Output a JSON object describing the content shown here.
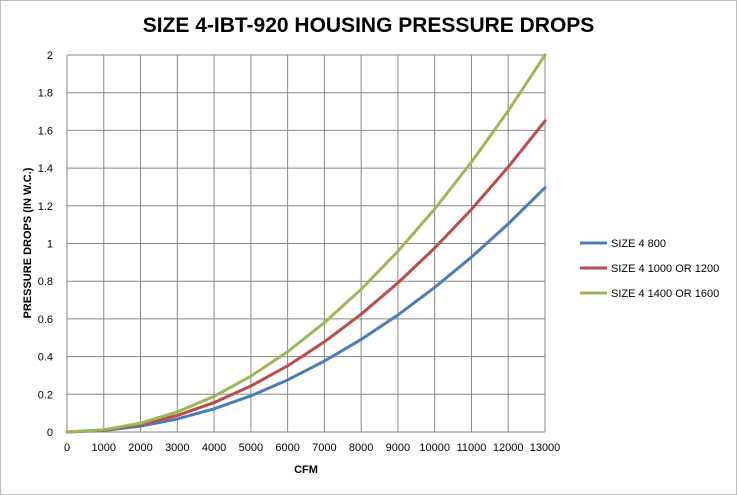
{
  "chart_data": {
    "type": "line",
    "title": "SIZE 4-IBT-920  HOUSING  PRESSURE DROPS",
    "xlabel": "CFM",
    "ylabel": "PRESSURE  DROPS  (IN W.C.)",
    "xlim": [
      0,
      13000
    ],
    "ylim": [
      0,
      2
    ],
    "xticks": [
      0,
      1000,
      2000,
      3000,
      4000,
      5000,
      6000,
      7000,
      8000,
      9000,
      10000,
      11000,
      12000,
      13000
    ],
    "yticks": [
      0,
      0.2,
      0.4,
      0.6,
      0.8,
      1,
      1.2,
      1.4,
      1.6,
      1.8,
      2
    ],
    "grid": true,
    "legend_position": "right",
    "x": [
      0,
      1000,
      2000,
      3000,
      4000,
      5000,
      6000,
      7000,
      8000,
      9000,
      10000,
      11000,
      12000,
      13000
    ],
    "series": [
      {
        "name": "SIZE 4 800",
        "color": "#4a7ebb",
        "values": [
          0,
          0.008,
          0.031,
          0.069,
          0.123,
          0.192,
          0.276,
          0.376,
          0.491,
          0.621,
          0.767,
          0.928,
          1.104,
          1.296
        ]
      },
      {
        "name": "SIZE 4 1000 OR 1200",
        "color": "#be4b48",
        "values": [
          0,
          0.01,
          0.039,
          0.088,
          0.156,
          0.244,
          0.351,
          0.478,
          0.625,
          0.791,
          0.976,
          1.181,
          1.406,
          1.65
        ]
      },
      {
        "name": "SIZE 4 1400 OR 1600",
        "color": "#98b954",
        "values": [
          0,
          0.012,
          0.047,
          0.107,
          0.189,
          0.296,
          0.426,
          0.58,
          0.757,
          0.959,
          1.183,
          1.432,
          1.704,
          2.0
        ]
      }
    ]
  }
}
